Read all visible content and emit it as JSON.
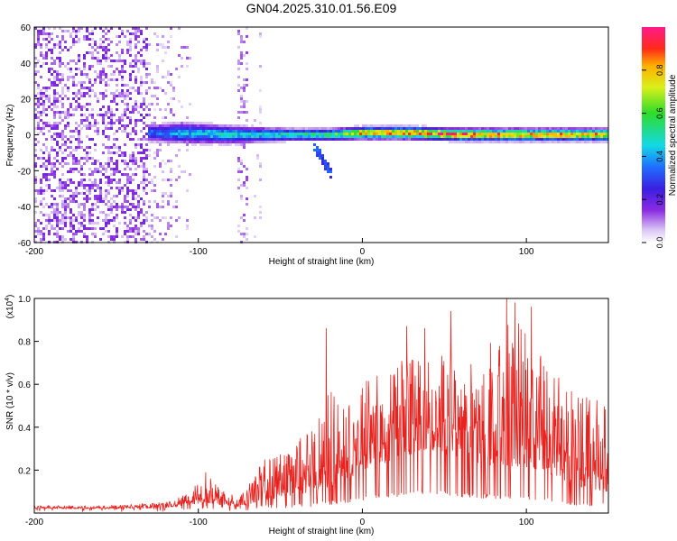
{
  "title": "GN04.2025.310.01.56.E09",
  "colors": {
    "snr_line": "#e8231f",
    "frame": "#000000"
  },
  "chart_data": [
    {
      "type": "heatmap",
      "xlabel": "Height of straight line (km)",
      "ylabel": "Frequency (Hz)",
      "xlim": [
        -200,
        150
      ],
      "ylim": [
        -60,
        60
      ],
      "x_ticks": [
        -200,
        -100,
        0,
        100
      ],
      "x_tick_labels": [
        "-200",
        "-100",
        "0",
        "100"
      ],
      "y_ticks": [
        -60,
        -40,
        -20,
        0,
        20,
        40,
        60
      ],
      "y_tick_labels": [
        "-60",
        "-40",
        "-20",
        "0",
        "20",
        "40",
        "60"
      ],
      "description": "Broadband noise at heights below about -105 km; narrow band near 0 Hz from about -130 km to 150 km with peak amplitude near 0 Hz between 0 and 150 km; faint vertical streak near -72 km; short downward feature near -25 km to about -22 Hz.",
      "colorbar": {
        "label": "Normalized spectral amplitude",
        "range": [
          0,
          1
        ],
        "ticks": [
          0.0,
          0.2,
          0.4,
          0.6,
          0.8
        ],
        "tick_labels": [
          "0.0",
          "0.2",
          "0.4",
          "0.6",
          "0.8"
        ],
        "stops": [
          {
            "v": 0.0,
            "color": "#ffffff"
          },
          {
            "v": 0.06,
            "color": "#d9c4f5"
          },
          {
            "v": 0.15,
            "color": "#8b2be2"
          },
          {
            "v": 0.25,
            "color": "#3a1fe0"
          },
          {
            "v": 0.35,
            "color": "#1f6fff"
          },
          {
            "v": 0.45,
            "color": "#12d9e6"
          },
          {
            "v": 0.6,
            "color": "#2edc2a"
          },
          {
            "v": 0.72,
            "color": "#d9ef1a"
          },
          {
            "v": 0.82,
            "color": "#ffb000"
          },
          {
            "v": 0.9,
            "color": "#ff2a1a"
          },
          {
            "v": 1.0,
            "color": "#ff1a8c"
          }
        ]
      },
      "band": [
        {
          "x": -130,
          "freq": 1,
          "width": 6,
          "amp": 0.35
        },
        {
          "x": -110,
          "freq": 1,
          "width": 7,
          "amp": 0.45
        },
        {
          "x": -80,
          "freq": 0,
          "width": 6,
          "amp": 0.5
        },
        {
          "x": -62,
          "freq": 0,
          "width": 5,
          "amp": 0.5
        },
        {
          "x": -40,
          "freq": 0,
          "width": 4,
          "amp": 0.55
        },
        {
          "x": -20,
          "freq": 0,
          "width": 4,
          "amp": 0.6
        },
        {
          "x": 0,
          "freq": 1,
          "width": 4,
          "amp": 0.85
        },
        {
          "x": 30,
          "freq": 1,
          "width": 4,
          "amp": 0.95
        },
        {
          "x": 60,
          "freq": 0,
          "width": 4,
          "amp": 0.95
        },
        {
          "x": 100,
          "freq": 0,
          "width": 4,
          "amp": 0.9
        },
        {
          "x": 150,
          "freq": 0,
          "width": 4,
          "amp": 0.85
        }
      ]
    },
    {
      "type": "line",
      "xlabel": "Height of straight line (km)",
      "ylabel": "SNR (10 * v/v)",
      "y_scale_label": "(x10",
      "y_scale_exp": "4",
      "y_scale_close": ")",
      "xlim": [
        -200,
        150
      ],
      "ylim": [
        0,
        1.0
      ],
      "x_ticks": [
        -200,
        -100,
        0,
        100
      ],
      "x_tick_labels": [
        "-200",
        "-100",
        "0",
        "100"
      ],
      "y_ticks": [
        0.2,
        0.4,
        0.6,
        0.8,
        1.0
      ],
      "y_tick_labels": [
        "0.2",
        "0.4",
        "0.6",
        "0.8",
        "1.0"
      ],
      "envelope": [
        {
          "x": -200,
          "base": 0.02,
          "peak": 0.035
        },
        {
          "x": -160,
          "base": 0.02,
          "peak": 0.035
        },
        {
          "x": -120,
          "base": 0.025,
          "peak": 0.05
        },
        {
          "x": -105,
          "base": 0.04,
          "peak": 0.1
        },
        {
          "x": -95,
          "base": 0.05,
          "peak": 0.2
        },
        {
          "x": -88,
          "base": 0.04,
          "peak": 0.12
        },
        {
          "x": -75,
          "base": 0.03,
          "peak": 0.07
        },
        {
          "x": -60,
          "base": 0.06,
          "peak": 0.25
        },
        {
          "x": -45,
          "base": 0.08,
          "peak": 0.3
        },
        {
          "x": -30,
          "base": 0.1,
          "peak": 0.4
        },
        {
          "x": -20,
          "base": 0.12,
          "peak": 0.6
        },
        {
          "x": -10,
          "base": 0.15,
          "peak": 0.5
        },
        {
          "x": 0,
          "base": 0.2,
          "peak": 0.62
        },
        {
          "x": 20,
          "base": 0.25,
          "peak": 0.7
        },
        {
          "x": 40,
          "base": 0.3,
          "peak": 0.75
        },
        {
          "x": 60,
          "base": 0.25,
          "peak": 0.72
        },
        {
          "x": 80,
          "base": 0.22,
          "peak": 0.85
        },
        {
          "x": 90,
          "base": 0.22,
          "peak": 0.95
        },
        {
          "x": 110,
          "base": 0.2,
          "peak": 0.72
        },
        {
          "x": 130,
          "base": 0.12,
          "peak": 0.55
        },
        {
          "x": 150,
          "base": 0.1,
          "peak": 0.55
        }
      ],
      "spikes": [
        {
          "x": -22,
          "y": 0.86
        },
        {
          "x": 27,
          "y": 0.87
        },
        {
          "x": 38,
          "y": 0.86
        },
        {
          "x": 54,
          "y": 0.94
        },
        {
          "x": 88,
          "y": 1.0
        },
        {
          "x": 93,
          "y": 0.98
        },
        {
          "x": 103,
          "y": 0.96
        }
      ]
    }
  ]
}
